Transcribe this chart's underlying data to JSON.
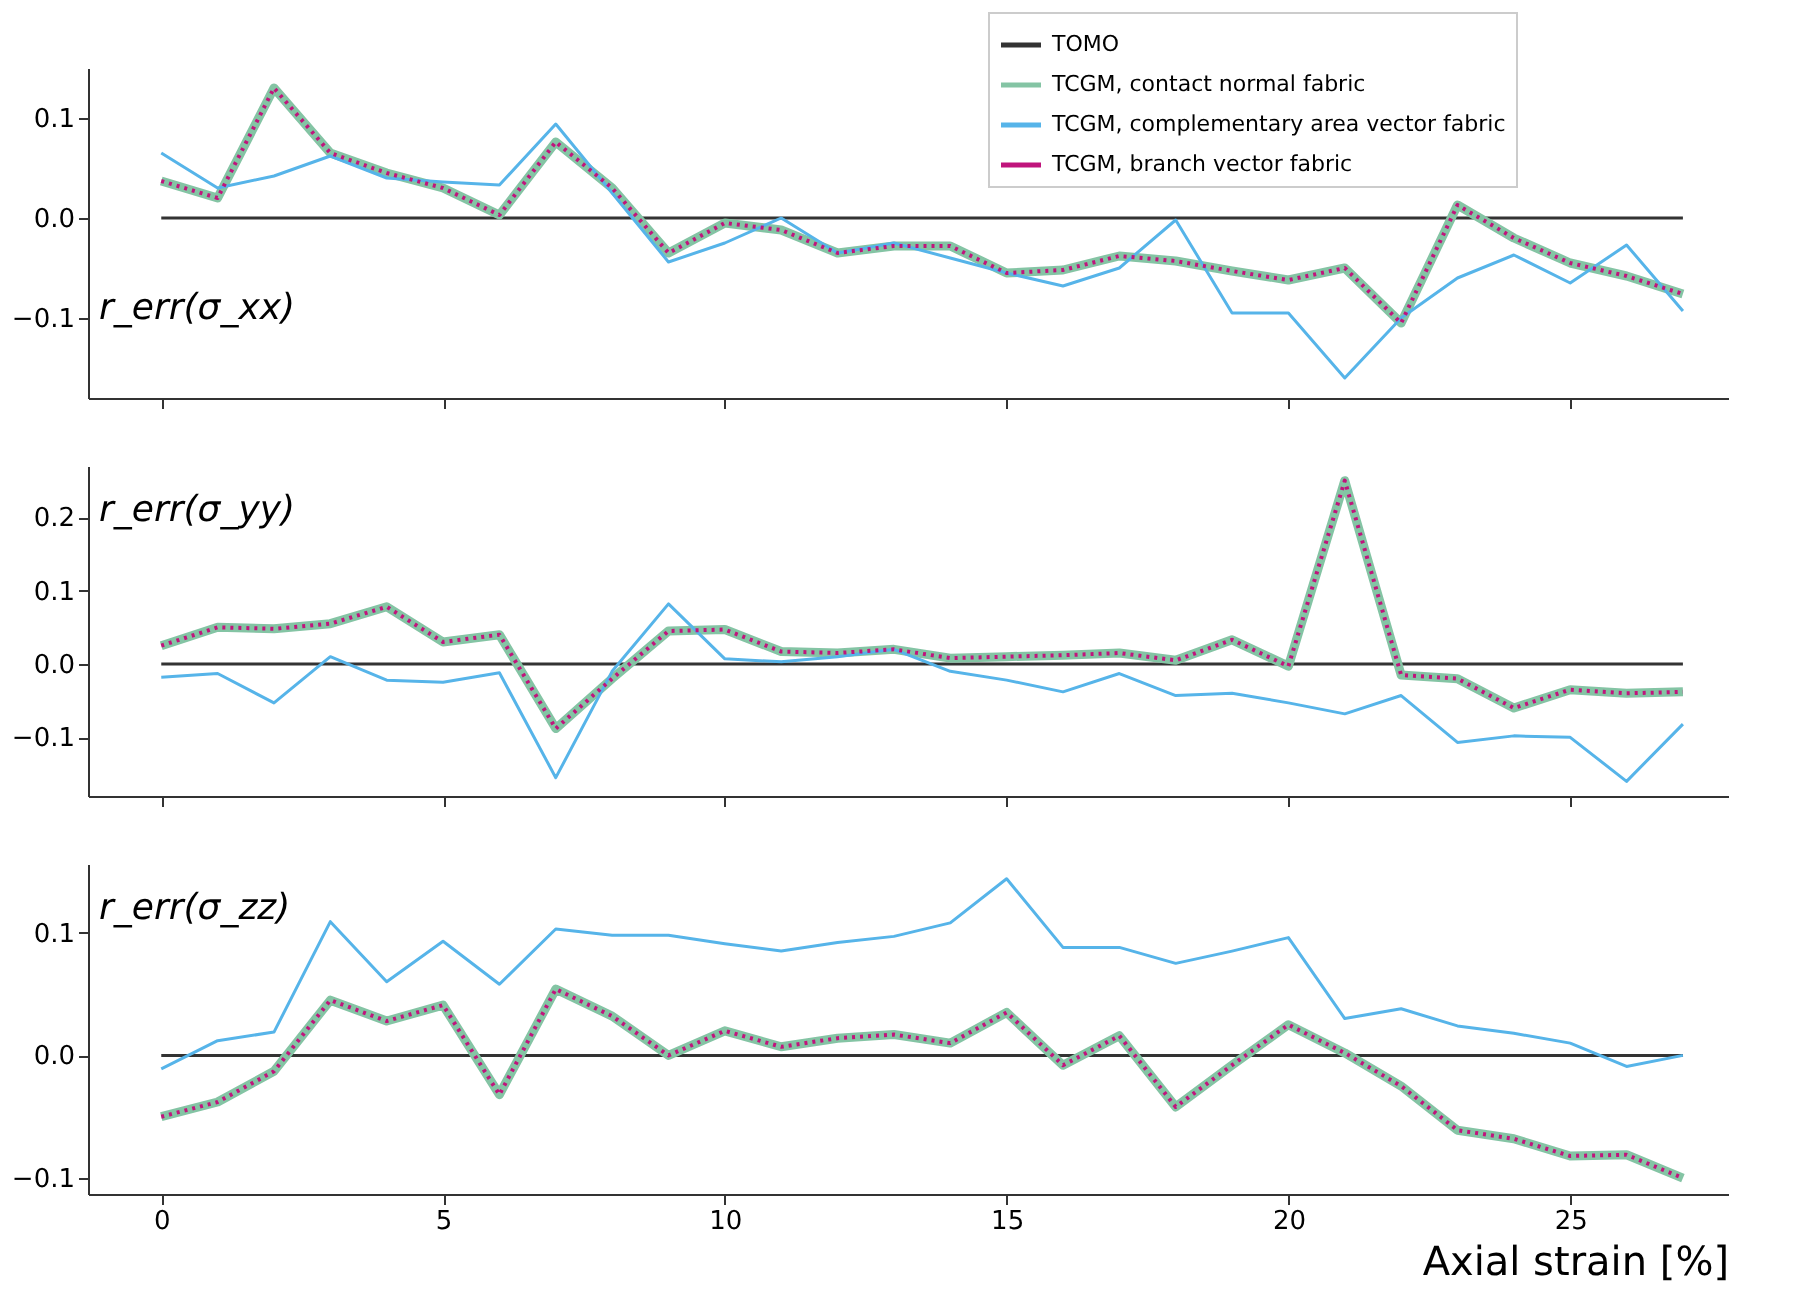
{
  "chart_data": [
    {
      "type": "line",
      "ylabel": "r_err(σ_xx)",
      "xlim": [
        -1.3,
        27.8
      ],
      "xticks": [
        0,
        5,
        10,
        15,
        20,
        25
      ],
      "ylim": [
        -0.18,
        0.15
      ],
      "yticks": [
        {
          "value": -0.1,
          "label": "−0.1"
        },
        {
          "value": 0,
          "label": "0.0"
        },
        {
          "value": 0.1,
          "label": "0.1"
        }
      ],
      "tick_labels": "y",
      "grid": false,
      "legend": "top right",
      "marker": "none",
      "x": [
        0,
        1,
        2,
        3,
        4,
        5,
        6,
        7,
        8,
        9,
        10,
        11,
        12,
        13,
        14,
        15,
        16,
        17,
        18,
        19,
        20,
        21,
        22,
        23,
        24,
        25,
        26,
        27
      ],
      "series": [
        {
          "name": "TOMO",
          "color": "#333333",
          "line_style": "solid",
          "values": [
            0,
            0,
            0,
            0,
            0,
            0,
            0,
            0,
            0,
            0,
            0,
            0,
            0,
            0,
            0,
            0,
            0,
            0,
            0,
            0,
            0,
            0,
            0,
            0,
            0,
            0,
            0,
            0
          ]
        },
        {
          "name": "TCGM, contact normal fabric",
          "color": "#84c4a4",
          "line_style": "solid",
          "values": [
            0.037,
            0.02,
            0.13,
            0.065,
            0.045,
            0.03,
            0.003,
            0.076,
            0.03,
            -0.035,
            -0.005,
            -0.012,
            -0.035,
            -0.028,
            -0.028,
            -0.055,
            -0.052,
            -0.038,
            -0.043,
            -0.053,
            -0.062,
            -0.05,
            -0.105,
            0.013,
            -0.02,
            -0.045,
            -0.058,
            -0.076
          ]
        },
        {
          "name": "TCGM, complementary area vector fabric",
          "color": "#56b4e9",
          "line_style": "solid",
          "values": [
            0.065,
            0.03,
            0.042,
            0.062,
            0.04,
            0.036,
            0.033,
            0.094,
            0.025,
            -0.044,
            -0.025,
            0.0,
            -0.035,
            -0.025,
            -0.04,
            -0.055,
            -0.068,
            -0.05,
            -0.002,
            -0.095,
            -0.095,
            -0.16,
            -0.1,
            -0.06,
            -0.037,
            -0.065,
            -0.027,
            -0.093
          ]
        },
        {
          "name": "TCGM, branch vector fabric",
          "color": "#c0147c",
          "line_style": "dotted",
          "values": [
            0.037,
            0.02,
            0.13,
            0.065,
            0.045,
            0.03,
            0.003,
            0.076,
            0.03,
            -0.035,
            -0.005,
            -0.012,
            -0.035,
            -0.028,
            -0.028,
            -0.055,
            -0.052,
            -0.038,
            -0.043,
            -0.053,
            -0.062,
            -0.05,
            -0.105,
            0.013,
            -0.02,
            -0.045,
            -0.058,
            -0.076
          ]
        }
      ]
    },
    {
      "type": "line",
      "ylabel": "r_err(σ_yy)",
      "xlim": [
        -1.3,
        27.8
      ],
      "xticks": [
        0,
        5,
        10,
        15,
        20,
        25
      ],
      "ylim": [
        -0.18,
        0.27
      ],
      "yticks": [
        {
          "value": -0.1,
          "label": "−0.1"
        },
        {
          "value": 0,
          "label": "0.0"
        },
        {
          "value": 0.1,
          "label": "0.1"
        },
        {
          "value": 0.2,
          "label": "0.2"
        }
      ],
      "tick_labels": "y",
      "grid": false,
      "marker": "none",
      "x": [
        0,
        1,
        2,
        3,
        4,
        5,
        6,
        7,
        8,
        9,
        10,
        11,
        12,
        13,
        14,
        15,
        16,
        17,
        18,
        19,
        20,
        21,
        22,
        23,
        24,
        25,
        26,
        27
      ],
      "series": [
        {
          "color": "#333333",
          "line_style": "solid",
          "values": [
            0,
            0,
            0,
            0,
            0,
            0,
            0,
            0,
            0,
            0,
            0,
            0,
            0,
            0,
            0,
            0,
            0,
            0,
            0,
            0,
            0,
            0,
            0,
            0,
            0,
            0,
            0,
            0
          ]
        },
        {
          "color": "#84c4a4",
          "line_style": "solid",
          "values": [
            0.025,
            0.05,
            0.048,
            0.055,
            0.078,
            0.03,
            0.04,
            -0.088,
            -0.02,
            0.045,
            0.047,
            0.017,
            0.015,
            0.02,
            0.008,
            0.01,
            0.012,
            0.015,
            0.005,
            0.033,
            -0.003,
            0.25,
            -0.015,
            -0.02,
            -0.06,
            -0.035,
            -0.04,
            -0.038
          ]
        },
        {
          "color": "#56b4e9",
          "line_style": "solid",
          "values": [
            -0.018,
            -0.013,
            -0.053,
            0.01,
            -0.022,
            -0.025,
            -0.012,
            -0.155,
            -0.01,
            0.082,
            0.007,
            0.003,
            0.01,
            0.02,
            -0.01,
            -0.022,
            -0.038,
            -0.013,
            -0.043,
            -0.04,
            -0.053,
            -0.068,
            -0.043,
            -0.107,
            -0.098,
            -0.1,
            -0.16,
            -0.082
          ]
        },
        {
          "color": "#c0147c",
          "line_style": "dotted",
          "values": [
            0.025,
            0.05,
            0.048,
            0.055,
            0.078,
            0.03,
            0.04,
            -0.088,
            -0.02,
            0.045,
            0.047,
            0.017,
            0.015,
            0.02,
            0.008,
            0.01,
            0.012,
            0.015,
            0.005,
            0.033,
            -0.003,
            0.25,
            -0.015,
            -0.02,
            -0.06,
            -0.035,
            -0.04,
            -0.038
          ]
        }
      ]
    },
    {
      "type": "line",
      "ylabel": "r_err(σ_zz)",
      "xlabel": "Axial strain [%]",
      "xlim": [
        -1.3,
        27.8
      ],
      "xticks": [
        0,
        5,
        10,
        15,
        20,
        25
      ],
      "ylim": [
        -0.113,
        0.156
      ],
      "yticks": [
        {
          "value": -0.1,
          "label": "−0.1"
        },
        {
          "value": 0,
          "label": "0.0"
        },
        {
          "value": 0.1,
          "label": "0.1"
        }
      ],
      "grid": false,
      "marker": "none",
      "x": [
        0,
        1,
        2,
        3,
        4,
        5,
        6,
        7,
        8,
        9,
        10,
        11,
        12,
        13,
        14,
        15,
        16,
        17,
        18,
        19,
        20,
        21,
        22,
        23,
        24,
        25,
        26,
        27
      ],
      "series": [
        {
          "color": "#333333",
          "line_style": "solid",
          "values": [
            0,
            0,
            0,
            0,
            0,
            0,
            0,
            0,
            0,
            0,
            0,
            0,
            0,
            0,
            0,
            0,
            0,
            0,
            0,
            0,
            0,
            0,
            0,
            0,
            0,
            0,
            0,
            0
          ]
        },
        {
          "color": "#84c4a4",
          "line_style": "solid",
          "values": [
            -0.05,
            -0.038,
            -0.013,
            0.045,
            0.028,
            0.041,
            -0.032,
            0.054,
            0.032,
            0.0,
            0.02,
            0.007,
            0.014,
            0.017,
            0.01,
            0.035,
            -0.008,
            0.016,
            -0.042,
            -0.008,
            0.025,
            0.002,
            -0.025,
            -0.061,
            -0.068,
            -0.082,
            -0.081,
            -0.1
          ]
        },
        {
          "color": "#56b4e9",
          "line_style": "solid",
          "values": [
            -0.011,
            0.012,
            0.019,
            0.109,
            0.06,
            0.093,
            0.058,
            0.103,
            0.098,
            0.098,
            0.091,
            0.085,
            0.092,
            0.097,
            0.108,
            0.144,
            0.088,
            0.088,
            0.075,
            0.085,
            0.096,
            0.03,
            0.038,
            0.024,
            0.018,
            0.01,
            -0.009,
            0.0
          ]
        },
        {
          "color": "#c0147c",
          "line_style": "dotted",
          "values": [
            -0.05,
            -0.038,
            -0.013,
            0.045,
            0.028,
            0.041,
            -0.032,
            0.054,
            0.032,
            0.0,
            0.02,
            0.007,
            0.014,
            0.017,
            0.01,
            0.035,
            -0.008,
            0.016,
            -0.042,
            -0.008,
            0.025,
            0.002,
            -0.025,
            -0.061,
            -0.068,
            -0.082,
            -0.081,
            -0.1
          ]
        }
      ]
    }
  ]
}
